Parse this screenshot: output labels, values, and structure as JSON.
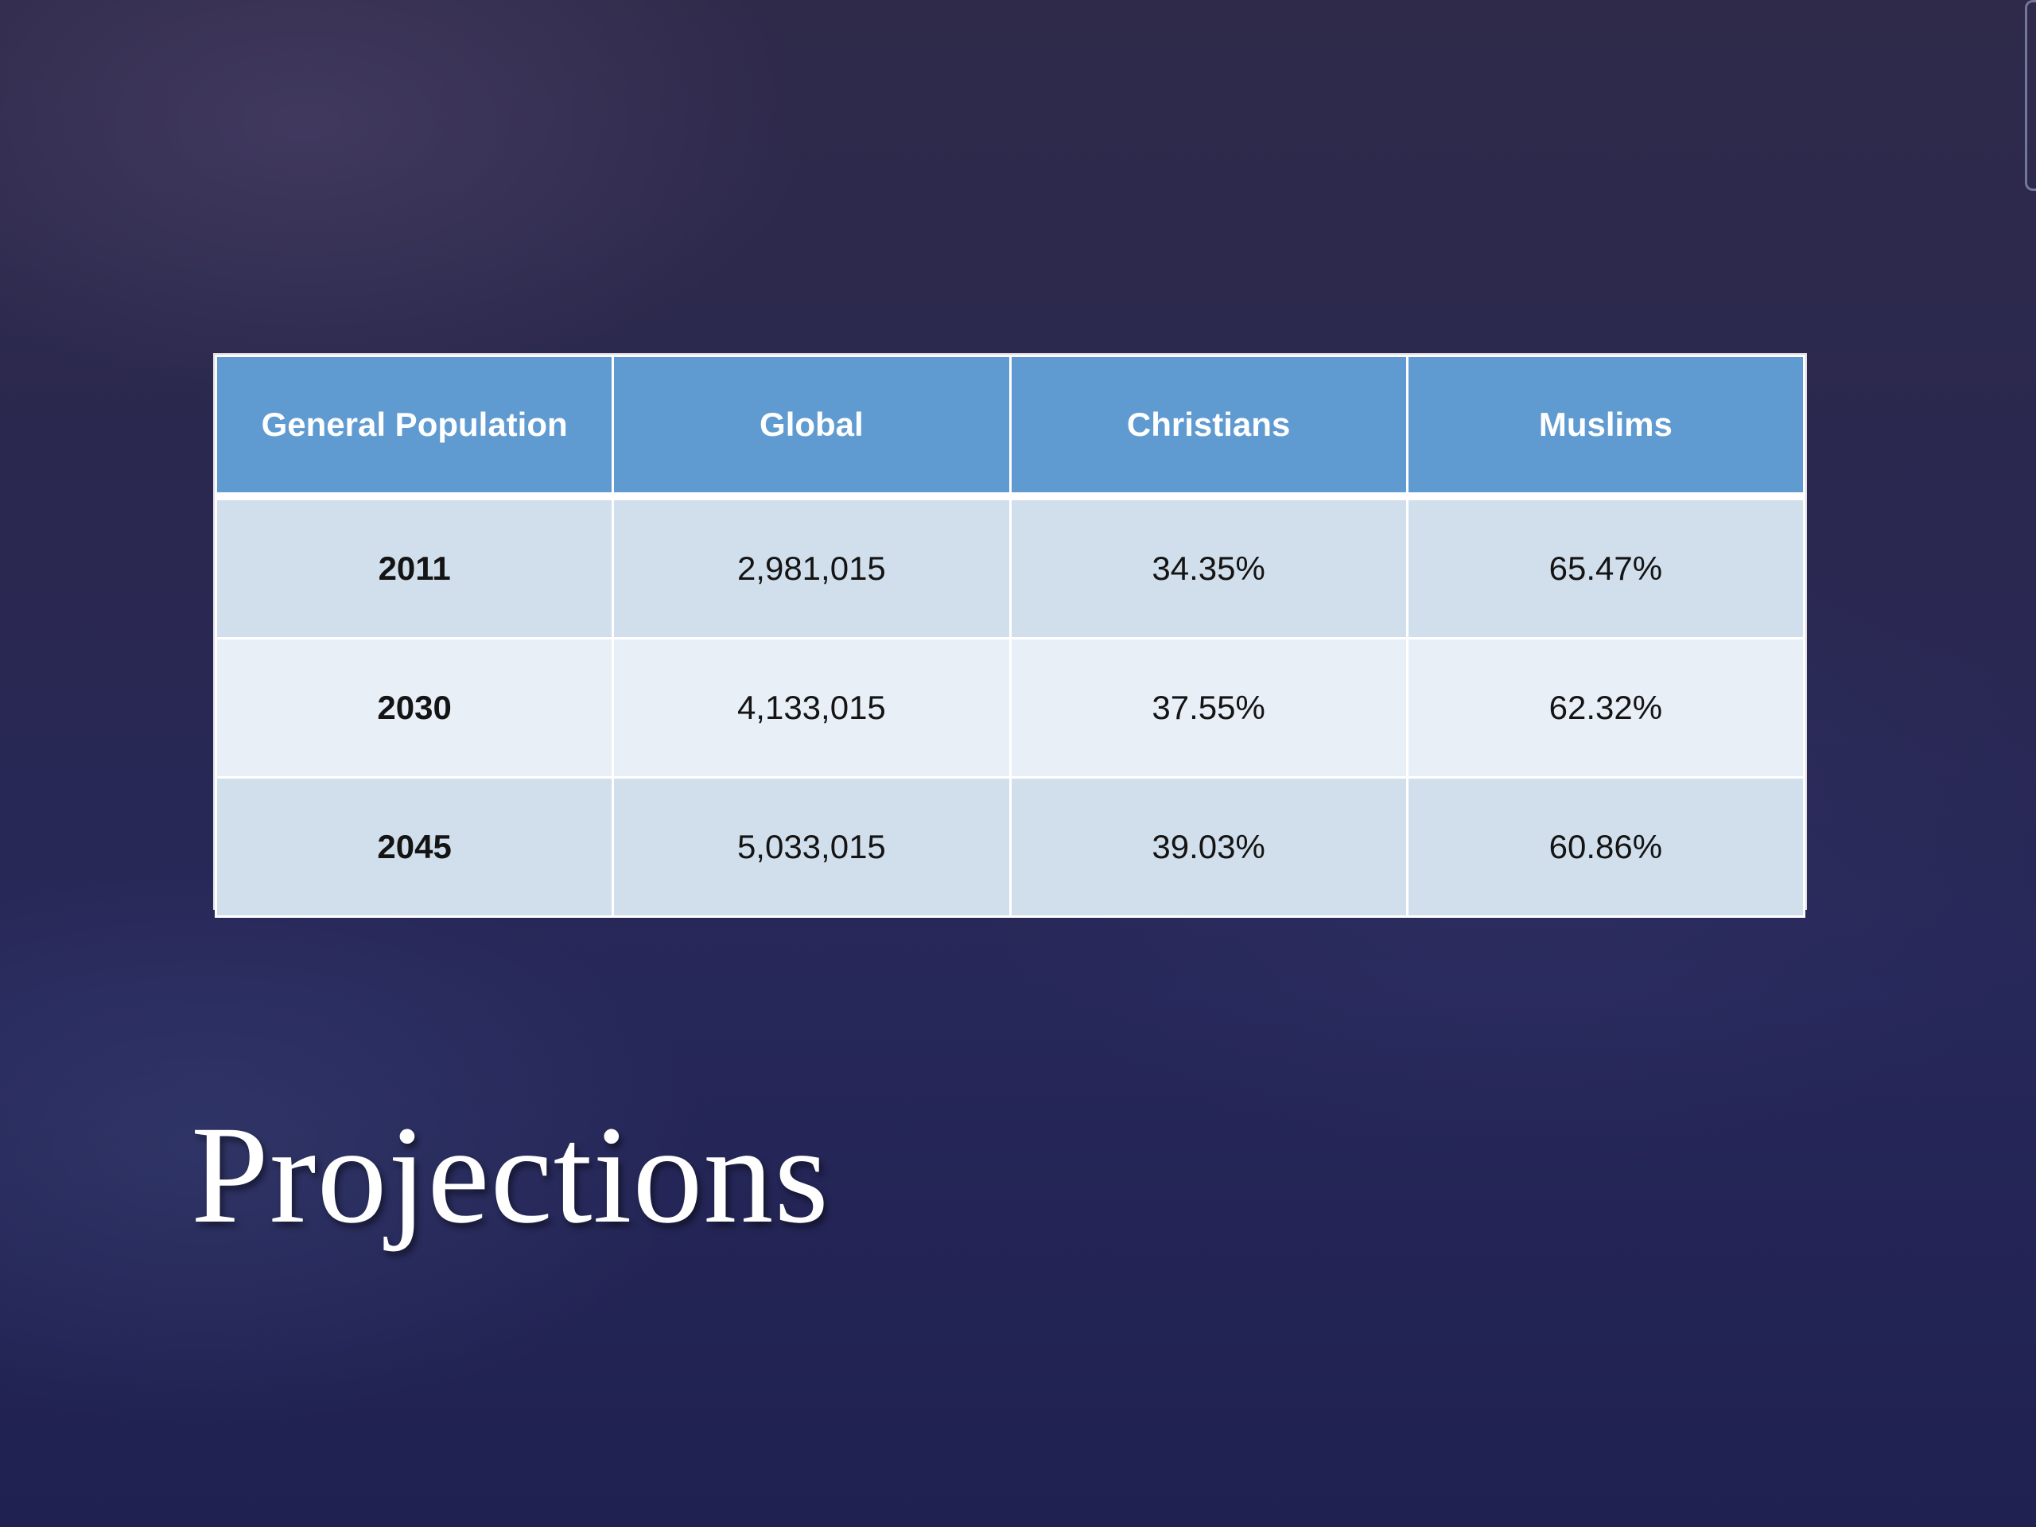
{
  "slide": {
    "title": "Projections"
  },
  "table": {
    "headers": [
      "General Population",
      "Global",
      "Christians",
      "Muslims"
    ],
    "rows": [
      {
        "year": "2011",
        "global": "2,981,015",
        "christians": "34.35%",
        "muslims": "65.47%"
      },
      {
        "year": "2030",
        "global": "4,133,015",
        "christians": "37.55%",
        "muslims": "62.32%"
      },
      {
        "year": "2045",
        "global": "5,033,015",
        "christians": "39.03%",
        "muslims": "60.86%"
      }
    ]
  },
  "colors": {
    "header_bg": "#5f9bd1",
    "row_dark": "#d1dfec",
    "row_light": "#e8eff7",
    "background": "#27285a"
  }
}
